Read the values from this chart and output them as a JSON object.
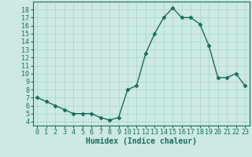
{
  "x": [
    0,
    1,
    2,
    3,
    4,
    5,
    6,
    7,
    8,
    9,
    10,
    11,
    12,
    13,
    14,
    15,
    16,
    17,
    18,
    19,
    20,
    21,
    22,
    23
  ],
  "y": [
    7.0,
    6.5,
    6.0,
    5.5,
    5.0,
    5.0,
    5.0,
    4.5,
    4.2,
    4.5,
    8.0,
    8.5,
    12.5,
    15.0,
    17.0,
    18.2,
    17.0,
    17.0,
    16.2,
    13.5,
    9.5,
    9.5,
    10.0,
    8.5
  ],
  "line_color": "#1a6b5a",
  "marker": "D",
  "markersize": 2.5,
  "linewidth": 1.0,
  "bg_color": "#cce9e4",
  "grid_color": "#aad4cc",
  "xlabel": "Humidex (Indice chaleur)",
  "xlabel_fontsize": 7,
  "tick_fontsize": 6,
  "xlim": [
    -0.5,
    23.5
  ],
  "ylim": [
    3.5,
    19.0
  ],
  "yticks": [
    4,
    5,
    6,
    7,
    8,
    9,
    10,
    11,
    12,
    13,
    14,
    15,
    16,
    17,
    18
  ],
  "xticks": [
    0,
    1,
    2,
    3,
    4,
    5,
    6,
    7,
    8,
    9,
    10,
    11,
    12,
    13,
    14,
    15,
    16,
    17,
    18,
    19,
    20,
    21,
    22,
    23
  ]
}
